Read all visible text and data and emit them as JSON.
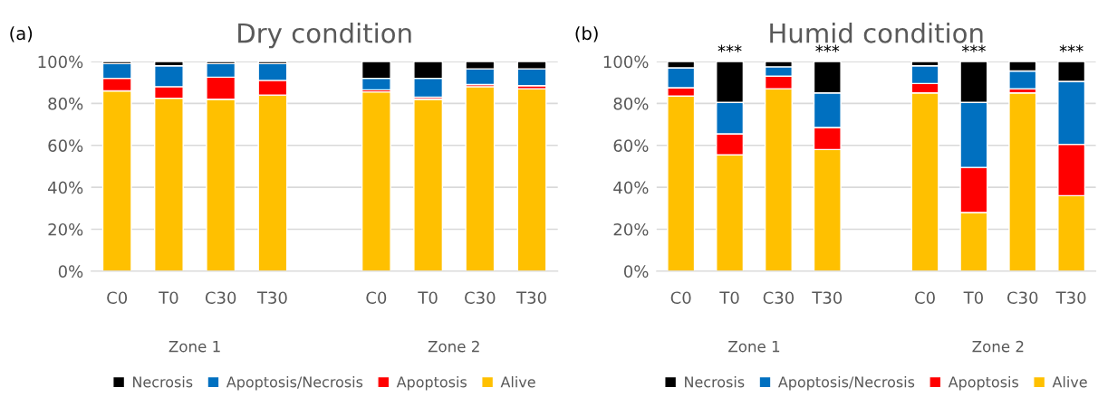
{
  "chart_data": [
    {
      "type": "bar",
      "title": "Dry condition",
      "stacked": true,
      "grid": "y",
      "legend": "bottom",
      "categories": [
        "C0",
        "T0",
        "C30",
        "T30",
        null,
        "C0",
        "T0",
        "C30",
        "T30"
      ],
      "ylim": [
        0,
        100
      ],
      "yticks": [
        {
          "value": 0,
          "label": "0%"
        },
        {
          "value": 20,
          "label": "20%"
        },
        {
          "value": 40,
          "label": "40%"
        },
        {
          "value": 60,
          "label": "60%"
        },
        {
          "value": 80,
          "label": "80%"
        },
        {
          "value": 100,
          "label": "100%"
        }
      ],
      "series": [
        {
          "name": "Alive",
          "color": "#ffc000",
          "values": [
            86,
            82.5,
            82,
            84,
            null,
            85.5,
            82,
            88,
            87
          ]
        },
        {
          "name": "Apoptosis",
          "color": "#ff0000",
          "values": [
            6,
            5.5,
            10.5,
            7,
            null,
            1,
            1,
            1,
            1.5
          ]
        },
        {
          "name": "Apoptosis/Necrosis",
          "color": "#0070c0",
          "values": [
            7,
            10,
            6.5,
            8,
            null,
            5.5,
            9,
            7.5,
            8
          ]
        },
        {
          "name": "Necrosis",
          "color": "#000000",
          "values": [
            1,
            2,
            1,
            1,
            null,
            8,
            8,
            3.5,
            3.5
          ]
        }
      ],
      "annotations": [
        "(a)",
        "Zone 1",
        "Zone 2"
      ]
    },
    {
      "type": "bar",
      "title": "Humid condition",
      "stacked": true,
      "grid": "y",
      "legend": "bottom",
      "categories": [
        "C0",
        "T0",
        "C30",
        "T30",
        null,
        "C0",
        "T0",
        "C30",
        "T30"
      ],
      "ylim": [
        0,
        100
      ],
      "yticks": [
        {
          "value": 0,
          "label": "0%"
        },
        {
          "value": 20,
          "label": "20%"
        },
        {
          "value": 40,
          "label": "40%"
        },
        {
          "value": 60,
          "label": "60%"
        },
        {
          "value": 80,
          "label": "80%"
        },
        {
          "value": 100,
          "label": "100%"
        }
      ],
      "series": [
        {
          "name": "Alive",
          "color": "#ffc000",
          "values": [
            83.5,
            55.5,
            87,
            58,
            null,
            85,
            28,
            85,
            36
          ]
        },
        {
          "name": "Apoptosis",
          "color": "#ff0000",
          "values": [
            4,
            10,
            6,
            10.5,
            null,
            4.5,
            21.5,
            2,
            24.5
          ]
        },
        {
          "name": "Apoptosis/Necrosis",
          "color": "#0070c0",
          "values": [
            9.5,
            15,
            4.5,
            16.5,
            null,
            8.5,
            31,
            8.5,
            30
          ]
        },
        {
          "name": "Necrosis",
          "color": "#000000",
          "values": [
            3,
            19.5,
            2.5,
            15,
            null,
            2,
            19.5,
            4.5,
            9.5
          ],
          "value_labels": [
            null,
            "***",
            null,
            "***",
            null,
            null,
            "***",
            null,
            "***"
          ]
        }
      ],
      "annotations": [
        "(b)",
        "Zone 1",
        "Zone 2"
      ]
    }
  ]
}
